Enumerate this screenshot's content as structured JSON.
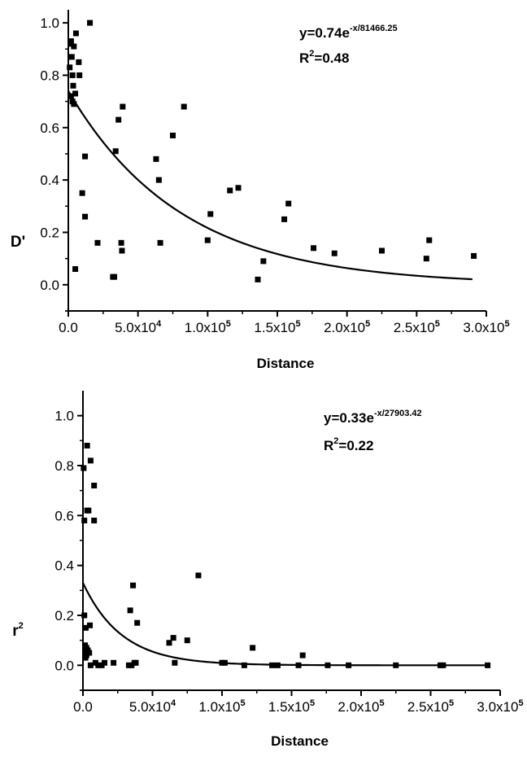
{
  "chart_data": [
    {
      "type": "scatter",
      "xlabel": "Distance",
      "ylabel": "D'",
      "xlim": [
        0,
        300000
      ],
      "ylim": [
        -0.1,
        1.05
      ],
      "x_ticks": [
        {
          "value": 0,
          "mantissa": "0.0",
          "exp": ""
        },
        {
          "value": 50000,
          "mantissa": "5.0x10",
          "exp": "4"
        },
        {
          "value": 100000,
          "mantissa": "1.0x10",
          "exp": "5"
        },
        {
          "value": 150000,
          "mantissa": "1.5x10",
          "exp": "5"
        },
        {
          "value": 200000,
          "mantissa": "2.0x10",
          "exp": "5"
        },
        {
          "value": 250000,
          "mantissa": "2.5x10",
          "exp": "5"
        },
        {
          "value": 300000,
          "mantissa": "3.0x10",
          "exp": "5"
        }
      ],
      "y_ticks": [
        {
          "value": 0.0,
          "label": "0.0"
        },
        {
          "value": 0.2,
          "label": "0.2"
        },
        {
          "value": 0.4,
          "label": "0.4"
        },
        {
          "value": 0.6,
          "label": "0.6"
        },
        {
          "value": 0.8,
          "label": "0.8"
        },
        {
          "value": 1.0,
          "label": "1.0"
        }
      ],
      "grid": false,
      "legend": "none",
      "annotation": {
        "eq_prefix": "y=0.74e",
        "eq_exp": "-x/81466.25",
        "r2_base": "R",
        "r2_exp": "2",
        "r2_value": "=0.48"
      },
      "fit": {
        "a": 0.74,
        "b": 81466.25,
        "x_range": [
          0,
          290000
        ]
      },
      "points": [
        [
          1000,
          0.83
        ],
        [
          1500,
          0.92
        ],
        [
          2000,
          0.93
        ],
        [
          2500,
          0.87
        ],
        [
          3000,
          0.8
        ],
        [
          3500,
          0.76
        ],
        [
          4000,
          0.91
        ],
        [
          2000,
          0.72
        ],
        [
          3000,
          0.7
        ],
        [
          4000,
          0.69
        ],
        [
          5000,
          0.73
        ],
        [
          5500,
          0.96
        ],
        [
          7500,
          0.85
        ],
        [
          8000,
          0.8
        ],
        [
          10000,
          0.35
        ],
        [
          12000,
          0.49
        ],
        [
          12000,
          0.26
        ],
        [
          15500,
          1.0
        ],
        [
          5000,
          0.06
        ],
        [
          21000,
          0.16
        ],
        [
          32000,
          0.03
        ],
        [
          33000,
          0.03
        ],
        [
          34000,
          0.51
        ],
        [
          36000,
          0.63
        ],
        [
          38000,
          0.16
        ],
        [
          38500,
          0.13
        ],
        [
          39000,
          0.68
        ],
        [
          63000,
          0.48
        ],
        [
          65000,
          0.4
        ],
        [
          66000,
          0.16
        ],
        [
          75000,
          0.57
        ],
        [
          83000,
          0.68
        ],
        [
          100000,
          0.17
        ],
        [
          102000,
          0.27
        ],
        [
          116000,
          0.36
        ],
        [
          122000,
          0.37
        ],
        [
          136000,
          0.02
        ],
        [
          140000,
          0.09
        ],
        [
          155000,
          0.25
        ],
        [
          158000,
          0.31
        ],
        [
          176000,
          0.14
        ],
        [
          191000,
          0.12
        ],
        [
          225000,
          0.13
        ],
        [
          257000,
          0.1
        ],
        [
          259000,
          0.17
        ],
        [
          291000,
          0.11
        ]
      ]
    },
    {
      "type": "scatter",
      "xlabel": "Distance",
      "ylabel_base": "r",
      "ylabel_exp": "2",
      "xlim": [
        0,
        300000
      ],
      "ylim": [
        -0.1,
        1.1
      ],
      "x_ticks": [
        {
          "value": 0,
          "mantissa": "0.0",
          "exp": ""
        },
        {
          "value": 50000,
          "mantissa": "5.0x10",
          "exp": "4"
        },
        {
          "value": 100000,
          "mantissa": "1.0x10",
          "exp": "5"
        },
        {
          "value": 150000,
          "mantissa": "1.5x10",
          "exp": "5"
        },
        {
          "value": 200000,
          "mantissa": "2.0x10",
          "exp": "5"
        },
        {
          "value": 250000,
          "mantissa": "2.5x10",
          "exp": "5"
        },
        {
          "value": 300000,
          "mantissa": "3.0x10",
          "exp": "5"
        }
      ],
      "y_ticks": [
        {
          "value": 0.0,
          "label": "0.0"
        },
        {
          "value": 0.2,
          "label": "0.2"
        },
        {
          "value": 0.4,
          "label": "0.4"
        },
        {
          "value": 0.6,
          "label": "0.6"
        },
        {
          "value": 0.8,
          "label": "0.8"
        },
        {
          "value": 1.0,
          "label": "1.0"
        }
      ],
      "grid": false,
      "legend": "none",
      "annotation": {
        "eq_prefix": "y=0.33e",
        "eq_exp": "-x/27903.42",
        "r2_base": "R",
        "r2_exp": "2",
        "r2_value": "=0.22"
      },
      "fit": {
        "a": 0.33,
        "b": 27903.42,
        "x_range": [
          0,
          290000
        ]
      },
      "points": [
        [
          500,
          0.79
        ],
        [
          1000,
          0.58
        ],
        [
          1000,
          0.2
        ],
        [
          1500,
          0.08
        ],
        [
          1500,
          0.05
        ],
        [
          1800,
          0.03
        ],
        [
          2000,
          0.15
        ],
        [
          2500,
          0.07
        ],
        [
          2500,
          0.04
        ],
        [
          3000,
          0.88
        ],
        [
          3000,
          0.62
        ],
        [
          3500,
          0.06
        ],
        [
          4000,
          0.62
        ],
        [
          4500,
          0.05
        ],
        [
          5000,
          0.16
        ],
        [
          5500,
          0.82
        ],
        [
          5500,
          0.0
        ],
        [
          8000,
          0.72
        ],
        [
          8000,
          0.58
        ],
        [
          9000,
          0.01
        ],
        [
          11000,
          0.0
        ],
        [
          13500,
          0.0
        ],
        [
          15500,
          0.01
        ],
        [
          22000,
          0.01
        ],
        [
          33000,
          0.0
        ],
        [
          34000,
          0.22
        ],
        [
          35000,
          0.0
        ],
        [
          36000,
          0.32
        ],
        [
          37000,
          0.01
        ],
        [
          38000,
          0.01
        ],
        [
          39000,
          0.17
        ],
        [
          62000,
          0.09
        ],
        [
          65000,
          0.11
        ],
        [
          66000,
          0.01
        ],
        [
          75000,
          0.1
        ],
        [
          83000,
          0.36
        ],
        [
          100000,
          0.01
        ],
        [
          102000,
          0.01
        ],
        [
          116000,
          0.0
        ],
        [
          122000,
          0.07
        ],
        [
          136000,
          0.0
        ],
        [
          140000,
          0.0
        ],
        [
          155000,
          0.0
        ],
        [
          158000,
          0.04
        ],
        [
          176000,
          0.0
        ],
        [
          191000,
          0.0
        ],
        [
          225000,
          0.0
        ],
        [
          257000,
          0.0
        ],
        [
          259000,
          0.0
        ],
        [
          291000,
          0.0
        ]
      ]
    }
  ]
}
